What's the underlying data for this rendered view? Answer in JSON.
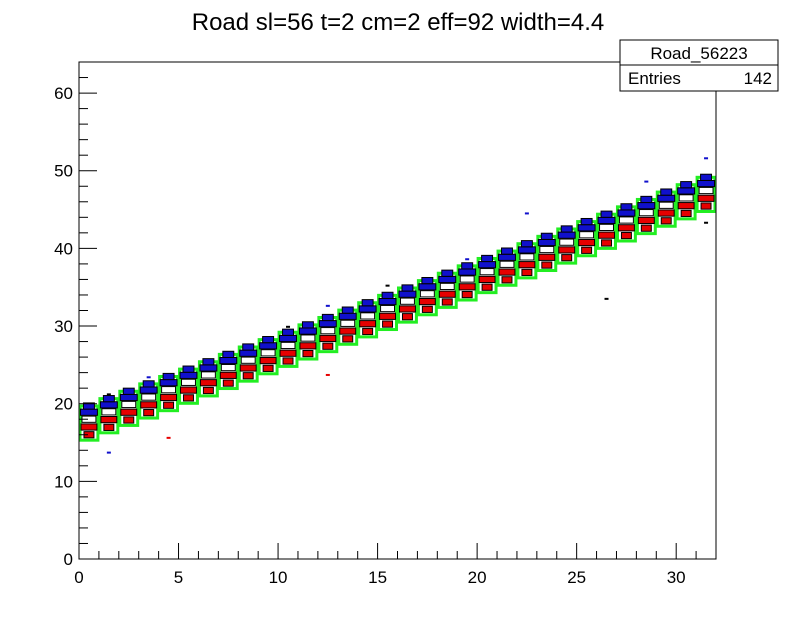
{
  "chart_data": {
    "type": "heatmap",
    "title": "Road sl=56 t=2 cm=2 eff=92 width=4.4",
    "xlabel": "",
    "ylabel": "",
    "xlim": [
      0,
      32
    ],
    "ylim": [
      0,
      64
    ],
    "x_ticks": [
      "0",
      "5",
      "10",
      "15",
      "20",
      "25",
      "30"
    ],
    "y_ticks": [
      "0",
      "10",
      "20",
      "30",
      "40",
      "50",
      "60"
    ],
    "grid": false,
    "stats_box": {
      "name": "Road_56223",
      "entries_label": "Entries",
      "entries_value": "142"
    },
    "road_boxes": {
      "color": "#22ee22",
      "lower_start": 15.3,
      "slope": 0.95,
      "height": 4.4
    },
    "cell_colors": {
      "low": "#e60000",
      "mid": "#ffffff",
      "high": "#1010cc",
      "outline": "#000000"
    },
    "scatter_points": [
      [
        1,
        13.7,
        "#1010cc"
      ],
      [
        1,
        21.2,
        "#000000"
      ],
      [
        3,
        23.4,
        "#1010cc"
      ],
      [
        4,
        15.6,
        "#e60000"
      ],
      [
        10,
        29.9,
        "#000000"
      ],
      [
        12,
        32.6,
        "#1010cc"
      ],
      [
        12,
        23.7,
        "#e60000"
      ],
      [
        15,
        35.2,
        "#000000"
      ],
      [
        19,
        38.6,
        "#1010cc"
      ],
      [
        22,
        44.5,
        "#1010cc"
      ],
      [
        26,
        33.5,
        "#000000"
      ],
      [
        28,
        48.6,
        "#1010cc"
      ],
      [
        31,
        51.6,
        "#1010cc"
      ],
      [
        31,
        43.3,
        "#000000"
      ]
    ]
  }
}
